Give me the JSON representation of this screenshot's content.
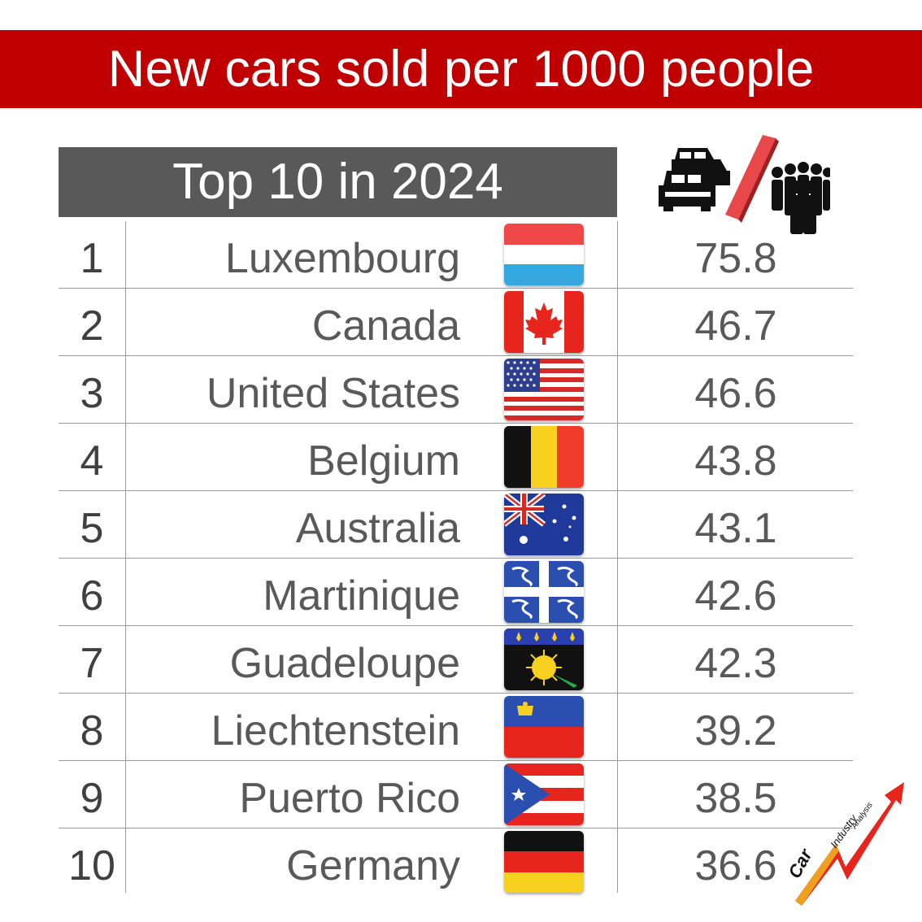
{
  "chart_data": {
    "type": "table",
    "title": "New cars sold per 1000 people",
    "subtitle": "Top 10 in 2024",
    "rows": [
      {
        "rank": "1",
        "country": "Luxembourg",
        "value": "75.8",
        "flag": "luxembourg"
      },
      {
        "rank": "2",
        "country": "Canada",
        "value": "46.7",
        "flag": "canada"
      },
      {
        "rank": "3",
        "country": "United States",
        "value": "46.6",
        "flag": "usa"
      },
      {
        "rank": "4",
        "country": "Belgium",
        "value": "43.8",
        "flag": "belgium"
      },
      {
        "rank": "5",
        "country": "Australia",
        "value": "43.1",
        "flag": "australia"
      },
      {
        "rank": "6",
        "country": "Martinique",
        "value": "42.6",
        "flag": "martinique"
      },
      {
        "rank": "7",
        "country": "Guadeloupe",
        "value": "42.3",
        "flag": "guadeloupe"
      },
      {
        "rank": "8",
        "country": "Liechtenstein",
        "value": "39.2",
        "flag": "liechtenstein"
      },
      {
        "rank": "9",
        "country": "Puerto Rico",
        "value": "38.5",
        "flag": "puerto-rico"
      },
      {
        "rank": "10",
        "country": "Germany",
        "value": "36.6",
        "flag": "germany"
      }
    ]
  },
  "header_icon": "cars-per-people-icon",
  "logo": {
    "word1": "Car",
    "word2": "Industry",
    "word3": "Analysis"
  },
  "colors": {
    "banner": "#c00000",
    "subheader": "#595959",
    "slash": "#e8484a"
  }
}
